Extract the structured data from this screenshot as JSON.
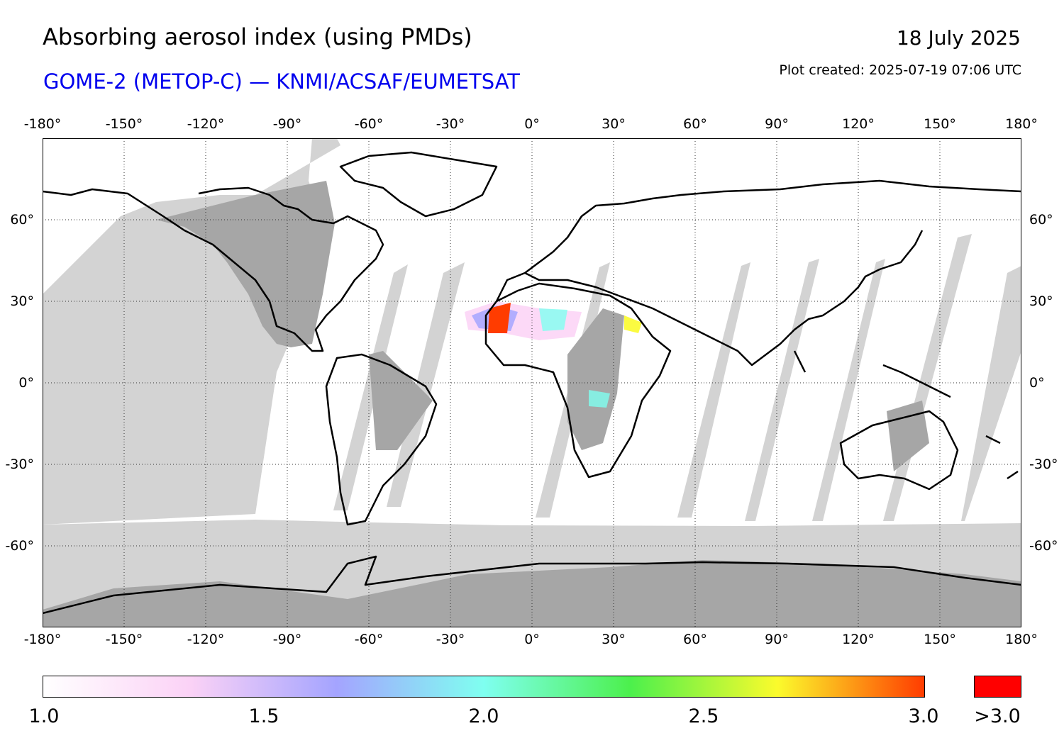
{
  "title": "Absorbing aerosol index (using PMDs)",
  "subtitle": "GOME-2 (METOP-C) — KNMI/ACSAF/EUMETSAT",
  "date": "18 July 2025",
  "plot_created": "Plot created: 2025-07-19 07:06 UTC",
  "colors": {
    "subtitle": "#0000ee",
    "no_data_light": "#d3d3d3",
    "no_data_dark": "#a6a6a6",
    "over_max": "#ff0000"
  },
  "longitude_ticks": [
    "-180°",
    "-150°",
    "-120°",
    "-90°",
    "-60°",
    "-30°",
    "0°",
    "30°",
    "60°",
    "90°",
    "120°",
    "150°",
    "180°"
  ],
  "latitude_ticks": [
    "60°",
    "30°",
    "0°",
    "-30°",
    "-60°"
  ],
  "colorbar": {
    "labels": [
      "1.0",
      "1.5",
      "2.0",
      "2.5",
      "3.0"
    ],
    "over_label": ">3.0",
    "stops": [
      "#ffffff",
      "#fbd2f6",
      "#a4a4ff",
      "#7ffff0",
      "#4cf04c",
      "#fbfb2c",
      "#ff3c00"
    ]
  }
}
